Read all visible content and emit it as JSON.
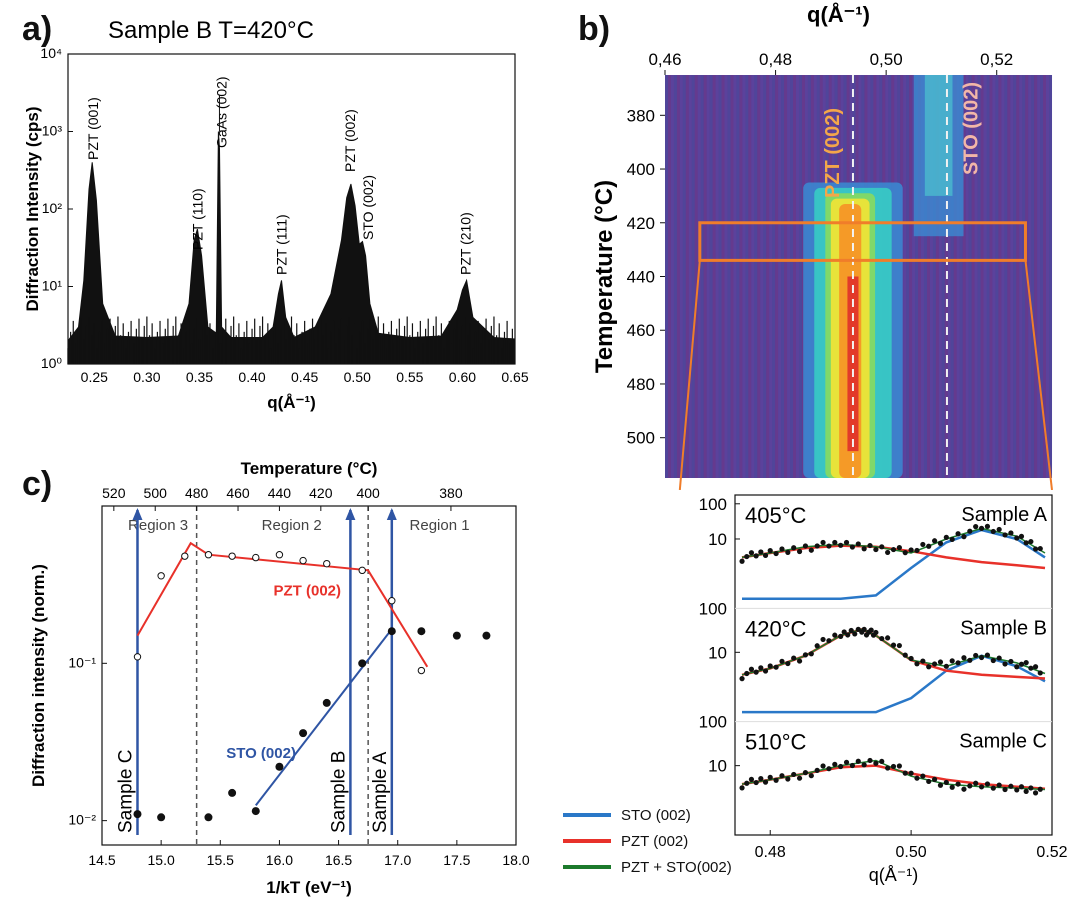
{
  "panels": {
    "a": {
      "label": "a)",
      "title": "Sample B T=420°C"
    },
    "b": {
      "label": "b)"
    },
    "c": {
      "label": "c)"
    }
  },
  "chart_data": [
    {
      "id": "a",
      "type": "line",
      "title": "Sample B T=420°C",
      "xlabel": "q(Å⁻¹)",
      "ylabel": "Diffraction Intensity (cps)",
      "xlim": [
        0.225,
        0.65
      ],
      "ylim": [
        1,
        10000
      ],
      "yscale": "log",
      "xticks": [
        "0.25",
        "0.30",
        "0.35",
        "0.40",
        "0.45",
        "0.50",
        "0.55",
        "0.60",
        "0.65"
      ],
      "yticks": [
        "10⁰",
        "10¹",
        "10²",
        "10³",
        "10⁴"
      ],
      "color": "#000000",
      "series": [
        {
          "x": [
            0.225,
            0.235,
            0.24,
            0.245,
            0.248,
            0.252,
            0.258,
            0.27,
            0.3,
            0.33,
            0.34,
            0.345,
            0.348,
            0.352,
            0.358,
            0.366,
            0.368,
            0.369,
            0.371,
            0.38,
            0.41,
            0.42,
            0.425,
            0.428,
            0.432,
            0.44,
            0.46,
            0.475,
            0.485,
            0.49,
            0.494,
            0.498,
            0.502,
            0.505,
            0.508,
            0.512,
            0.52,
            0.55,
            0.58,
            0.595,
            0.6,
            0.604,
            0.61,
            0.63,
            0.65
          ],
          "y": [
            2,
            3,
            12,
            180,
            400,
            130,
            6,
            2.3,
            2.2,
            2.3,
            6,
            40,
            55,
            25,
            3,
            2.5,
            1000,
            600,
            3,
            2.2,
            2.2,
            3,
            8,
            12,
            4,
            2.2,
            3,
            8,
            40,
            140,
            210,
            110,
            35,
            38,
            25,
            6,
            2.5,
            2.2,
            2.3,
            5,
            9,
            12,
            4,
            2.2,
            2.1
          ]
        }
      ],
      "annotations": [
        "PZT (001)",
        "PZT (110)",
        "GaAs (002)",
        "PZT (111)",
        "PZT (002)",
        "STO (002)",
        "PZT (210)"
      ]
    },
    {
      "id": "b",
      "type": "heatmap",
      "xlabel": "q(Å⁻¹)",
      "ylabel": "Temperature (°C)",
      "xlim": [
        0.46,
        0.53
      ],
      "ylim": [
        515,
        365
      ],
      "xticks": [
        "0,46",
        "0,48",
        "0,50",
        "0,52"
      ],
      "yticks": [
        "380",
        "400",
        "420",
        "440",
        "460",
        "480",
        "500"
      ],
      "annotations": [
        "PZT (002)",
        "STO (002)"
      ],
      "reference_lines_q": [
        0.494,
        0.511
      ],
      "highlight_T_range": [
        420,
        434
      ],
      "bands": [
        {
          "name": "PZT (002)",
          "q_center": 0.494,
          "T_range": [
            405,
            515
          ]
        },
        {
          "name": "STO (002)",
          "q_center": 0.509,
          "T_range": [
            365,
            425
          ]
        }
      ]
    },
    {
      "id": "b-inset",
      "type": "line",
      "xlabel": "q(Å⁻¹)",
      "xlim": [
        0.475,
        0.52
      ],
      "xticks": [
        "0.48",
        "0.50",
        "0.52"
      ],
      "yscale": "log",
      "subpanels": [
        {
          "temperature": "405°C",
          "sample": "Sample A",
          "data_q": [
            0.476,
            0.48,
            0.485,
            0.49,
            0.495,
            0.5,
            0.505,
            0.51,
            0.515,
            0.519
          ],
          "data_i": [
            3,
            4,
            6,
            7,
            6,
            4,
            10,
            20,
            12,
            4
          ],
          "pzt": [
            3,
            4,
            5.5,
            6.5,
            6,
            4.5,
            3,
            2.2,
            1.8,
            1.5
          ],
          "sto": [
            0.2,
            0.2,
            0.2,
            0.2,
            0.25,
            1.5,
            8,
            18,
            10,
            3
          ]
        },
        {
          "temperature": "420°C",
          "sample": "Sample B",
          "data_q": [
            0.476,
            0.48,
            0.485,
            0.49,
            0.493,
            0.495,
            0.5,
            0.505,
            0.51,
            0.515,
            0.519
          ],
          "data_i": [
            2.3,
            3.5,
            8,
            30,
            45,
            30,
            6,
            4,
            8,
            5,
            2.5
          ],
          "pzt": [
            2.3,
            3.5,
            8,
            30,
            45,
            30,
            6,
            3,
            2.3,
            2,
            1.8
          ],
          "sto": [
            0.2,
            0.2,
            0.2,
            0.2,
            0.2,
            0.2,
            0.5,
            3,
            8,
            4,
            1.5
          ]
        },
        {
          "temperature": "510°C",
          "sample": "Sample C",
          "data_q": [
            0.476,
            0.48,
            0.485,
            0.49,
            0.495,
            0.5,
            0.505,
            0.51,
            0.515,
            0.519
          ],
          "data_i": [
            3,
            4,
            6,
            10,
            14,
            5,
            3,
            2.5,
            2.3,
            2.1
          ],
          "pzt": [
            3,
            4,
            6,
            9,
            10,
            6,
            4,
            3,
            2.5,
            2.2
          ]
        }
      ],
      "yticks": [
        "10",
        "100"
      ]
    },
    {
      "id": "c",
      "type": "scatter",
      "xlabel": "1/kT (eV⁻¹)",
      "ylabel": "Diffraction intensity (norm.)",
      "top_xlabel": "Temperature (°C)",
      "xlim": [
        14.5,
        18.0
      ],
      "ylim": [
        0.007,
        1.0
      ],
      "yscale": "log",
      "xticks": [
        "14.5",
        "15.0",
        "15.5",
        "16.0",
        "16.5",
        "17.0",
        "17.5",
        "18.0"
      ],
      "top_xticks": [
        "520",
        "500",
        "480",
        "460",
        "440",
        "420",
        "400",
        "380"
      ],
      "yticks": [
        "10⁻²",
        "10⁻¹"
      ],
      "regions": [
        "Region 3",
        "Region 2",
        "Region 1"
      ],
      "region_boundaries": [
        15.3,
        16.75
      ],
      "samples": [
        {
          "name": "Sample C",
          "x": 14.8
        },
        {
          "name": "Sample B",
          "x": 16.6
        },
        {
          "name": "Sample A",
          "x": 16.95
        }
      ],
      "series": [
        {
          "name": "PZT (002)",
          "marker": "open",
          "x": [
            14.8,
            15.0,
            15.2,
            15.4,
            15.6,
            15.8,
            16.0,
            16.2,
            16.4,
            16.7,
            16.95,
            17.2
          ],
          "y": [
            0.11,
            0.36,
            0.48,
            0.49,
            0.48,
            0.47,
            0.49,
            0.45,
            0.43,
            0.39,
            0.25,
            0.09
          ]
        },
        {
          "name": "STO (002)",
          "marker": "filled",
          "x": [
            14.8,
            15.0,
            15.4,
            15.6,
            15.8,
            16.0,
            16.2,
            16.4,
            16.7,
            16.95,
            17.2,
            17.5,
            17.75
          ],
          "y": [
            0.011,
            0.0105,
            0.0105,
            0.015,
            0.0115,
            0.022,
            0.036,
            0.056,
            0.1,
            0.16,
            0.16,
            0.15,
            0.15
          ]
        }
      ],
      "fits": [
        {
          "name": "PZT (002)",
          "color": "#e8312a",
          "points": [
            [
              14.8,
              0.15
            ],
            [
              15.25,
              0.58
            ],
            [
              15.4,
              0.49
            ],
            [
              16.75,
              0.39
            ],
            [
              17.25,
              0.095
            ]
          ]
        },
        {
          "name": "STO (002)",
          "color": "#2f55a4",
          "points": [
            [
              15.8,
              0.0125
            ],
            [
              16.95,
              0.165
            ]
          ]
        }
      ],
      "annotations": [
        "PZT (002)",
        "STO (002)"
      ]
    }
  ],
  "legend": [
    {
      "label": "STO (002)",
      "color": "#2a78c8"
    },
    {
      "label": "PZT (002)",
      "color": "#e8312a"
    },
    {
      "label": "PZT + STO(002)",
      "color": "#1c7a2c"
    }
  ]
}
